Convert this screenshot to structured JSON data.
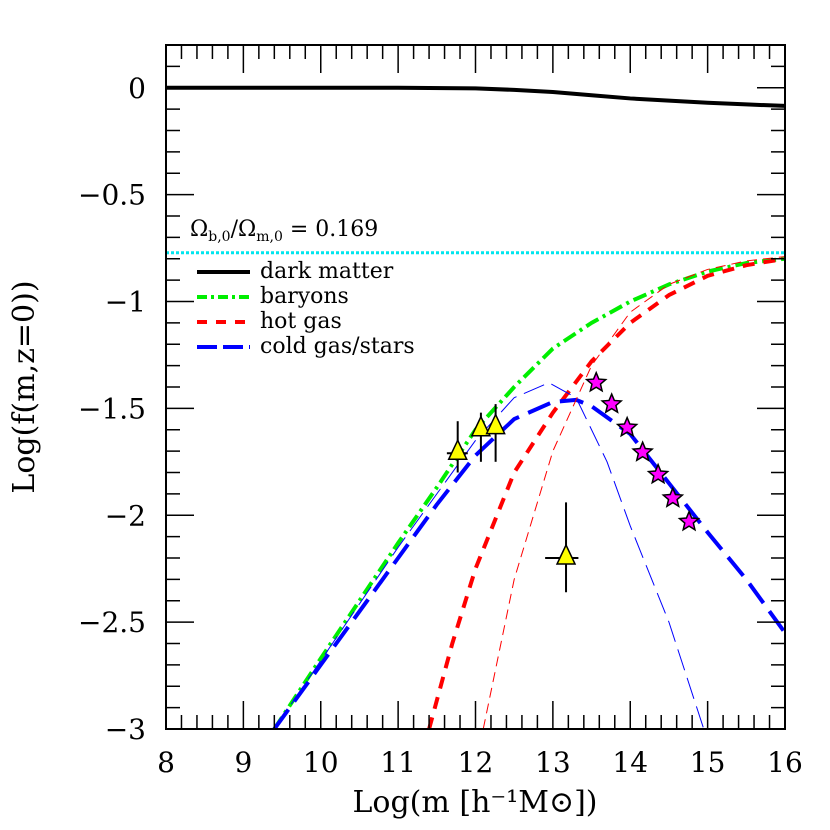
{
  "chart_data": {
    "type": "line",
    "title": "",
    "xlabel": "Log(m [h⁻¹M⊙])",
    "ylabel": "Log(f(m,z=0))",
    "xlim": [
      8,
      16
    ],
    "ylim": [
      -3,
      0.2
    ],
    "xticks": [
      8,
      9,
      10,
      11,
      12,
      13,
      14,
      15,
      16
    ],
    "xtick_labels": [
      "8",
      "9",
      "10",
      "11",
      "12",
      "13",
      "14",
      "15",
      "16"
    ],
    "yticks": [
      0,
      -0.5,
      -1,
      -1.5,
      -2,
      -2.5,
      -3
    ],
    "ytick_labels": [
      "0",
      "−0.5",
      "−1",
      "−1.5",
      "−2",
      "−2.5",
      "−3"
    ],
    "grid": false,
    "legend_placement": "upper-left",
    "annotation": {
      "text": "Ωb,0/Ωm,0 = 0.169",
      "main": "Ω",
      "sub1": "b,0",
      "slash": "/Ω",
      "sub2": "m,0",
      "rest": " = 0.169",
      "y": -0.772,
      "color": "#00e5ee"
    },
    "series": [
      {
        "name": "dark matter",
        "color": "#000000",
        "style": "solid",
        "width": "thick",
        "points": [
          [
            8,
            0
          ],
          [
            10,
            0
          ],
          [
            11,
            0
          ],
          [
            12,
            -0.003
          ],
          [
            12.5,
            -0.01
          ],
          [
            13,
            -0.02
          ],
          [
            13.5,
            -0.035
          ],
          [
            14,
            -0.05
          ],
          [
            14.5,
            -0.06
          ],
          [
            15,
            -0.07
          ],
          [
            15.5,
            -0.078
          ],
          [
            16,
            -0.085
          ]
        ]
      },
      {
        "name": "baryons",
        "color": "#00ee00",
        "style": "dashdot",
        "width": "thick",
        "points": [
          [
            9.4,
            -3
          ],
          [
            10,
            -2.67
          ],
          [
            10.5,
            -2.4
          ],
          [
            11,
            -2.13
          ],
          [
            11.5,
            -1.87
          ],
          [
            12,
            -1.6
          ],
          [
            12.5,
            -1.4
          ],
          [
            13,
            -1.22
          ],
          [
            13.5,
            -1.1
          ],
          [
            14,
            -1.0
          ],
          [
            14.5,
            -0.92
          ],
          [
            15,
            -0.86
          ],
          [
            15.5,
            -0.82
          ],
          [
            16,
            -0.8
          ]
        ]
      },
      {
        "name": "hot gas",
        "color": "#ff0000",
        "style": "dashed",
        "width": "thick",
        "points": [
          [
            11.4,
            -3
          ],
          [
            11.7,
            -2.6
          ],
          [
            12,
            -2.25
          ],
          [
            12.5,
            -1.8
          ],
          [
            13,
            -1.52
          ],
          [
            13.5,
            -1.28
          ],
          [
            14,
            -1.1
          ],
          [
            14.5,
            -0.97
          ],
          [
            15,
            -0.88
          ],
          [
            15.5,
            -0.83
          ],
          [
            16,
            -0.8
          ]
        ]
      },
      {
        "name": "cold gas/stars",
        "color": "#0000ff",
        "style": "longdash",
        "width": "thick",
        "points": [
          [
            9.4,
            -3
          ],
          [
            10,
            -2.7
          ],
          [
            10.5,
            -2.45
          ],
          [
            11,
            -2.2
          ],
          [
            11.5,
            -1.95
          ],
          [
            12,
            -1.72
          ],
          [
            12.5,
            -1.55
          ],
          [
            13,
            -1.47
          ],
          [
            13.3,
            -1.46
          ],
          [
            13.5,
            -1.49
          ],
          [
            14,
            -1.62
          ],
          [
            14.5,
            -1.85
          ],
          [
            15,
            -2.08
          ],
          [
            15.5,
            -2.3
          ],
          [
            16,
            -2.55
          ]
        ]
      },
      {
        "color": "#ff0000",
        "style": "dashed",
        "width": "thin",
        "points": [
          [
            12.1,
            -3
          ],
          [
            12.5,
            -2.3
          ],
          [
            13,
            -1.7
          ],
          [
            13.5,
            -1.3
          ],
          [
            14,
            -1.05
          ],
          [
            14.5,
            -0.92
          ],
          [
            15,
            -0.85
          ],
          [
            15.5,
            -0.81
          ],
          [
            16,
            -0.79
          ]
        ]
      },
      {
        "color": "#0000ff",
        "style": "longdash",
        "width": "thin",
        "points": [
          [
            9.4,
            -3
          ],
          [
            10,
            -2.68
          ],
          [
            11,
            -2.15
          ],
          [
            11.5,
            -1.9
          ],
          [
            12,
            -1.65
          ],
          [
            12.5,
            -1.45
          ],
          [
            12.95,
            -1.38
          ],
          [
            13.3,
            -1.45
          ],
          [
            13.7,
            -1.75
          ],
          [
            14,
            -2.05
          ],
          [
            14.5,
            -2.5
          ],
          [
            14.95,
            -3
          ]
        ]
      }
    ],
    "triangles": {
      "color": "#ffff00",
      "points": [
        {
          "x": 11.77,
          "y": -1.71,
          "ylo": -1.8,
          "yhi": -1.56,
          "xlo": 11.63,
          "xhi": 11.9
        },
        {
          "x": 12.07,
          "y": -1.6,
          "ylo": -1.75,
          "yhi": -1.52
        },
        {
          "x": 12.26,
          "y": -1.59,
          "ylo": -1.75,
          "yhi": -1.48
        },
        {
          "x": 13.17,
          "y": -2.2,
          "ylo": -2.36,
          "yhi": -1.94,
          "xlo": 12.9,
          "xhi": 13.33
        }
      ]
    },
    "stars": {
      "color": "#ff00ff",
      "points": [
        [
          13.56,
          -1.38
        ],
        [
          13.76,
          -1.48
        ],
        [
          13.96,
          -1.59
        ],
        [
          14.16,
          -1.705
        ],
        [
          14.36,
          -1.81
        ],
        [
          14.55,
          -1.92
        ],
        [
          14.76,
          -2.03
        ]
      ]
    }
  }
}
